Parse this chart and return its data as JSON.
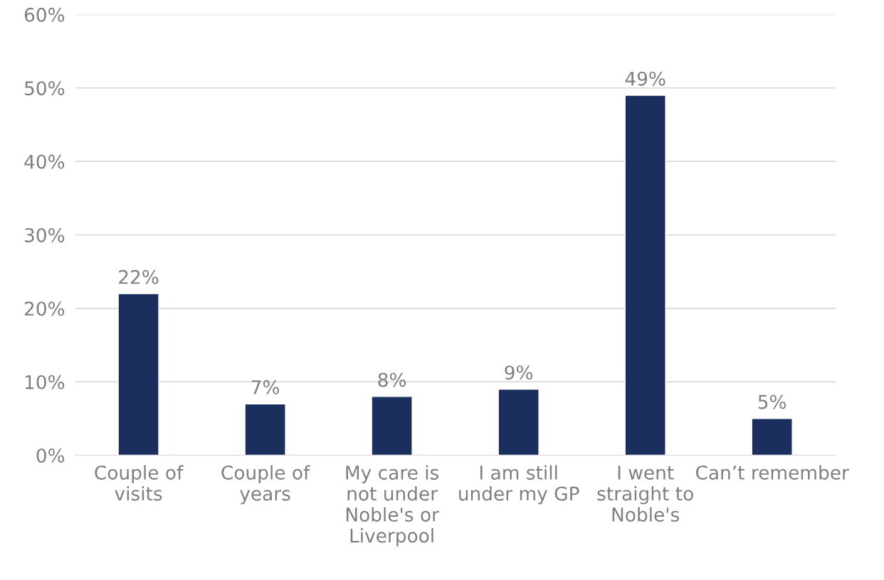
{
  "chart_data": {
    "type": "bar",
    "categories": [
      "Couple of\nvisits",
      "Couple of\nyears",
      "My care is\nnot under\nNoble's or\nLiverpool",
      "I am still\nunder my GP",
      "I went\nstraight to\nNoble's",
      "Can’t remember"
    ],
    "values": [
      22,
      7,
      8,
      9,
      49,
      5
    ],
    "value_labels": [
      "22%",
      "7%",
      "8%",
      "9%",
      "49%",
      "5%"
    ],
    "color": "#1b2f5e",
    "ylim": [
      0,
      60
    ],
    "yticks": [
      {
        "value": 0,
        "label": "0%"
      },
      {
        "value": 10,
        "label": "10%"
      },
      {
        "value": 20,
        "label": "20%"
      },
      {
        "value": 30,
        "label": "30%"
      },
      {
        "value": 40,
        "label": "40%"
      },
      {
        "value": 50,
        "label": "50%"
      },
      {
        "value": 60,
        "label": "60%"
      }
    ],
    "grid": "y",
    "legend": false
  }
}
